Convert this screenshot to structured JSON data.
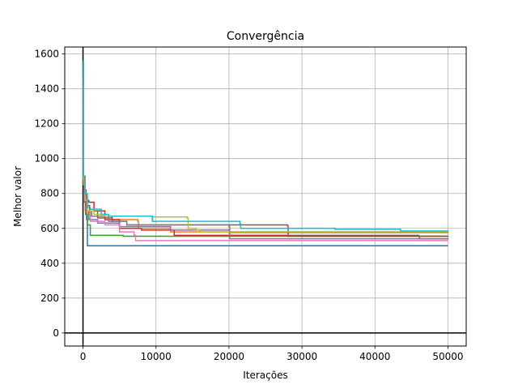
{
  "chart_data": {
    "type": "line",
    "title": "Convergência",
    "xlabel": "Iterações",
    "ylabel": "Melhor valor",
    "xlim": [
      -2500,
      52500
    ],
    "ylim": [
      -75,
      1640
    ],
    "xticks": [
      0,
      10000,
      20000,
      30000,
      40000,
      50000
    ],
    "yticks": [
      0,
      200,
      400,
      600,
      800,
      1000,
      1200,
      1400,
      1600
    ],
    "grid": true,
    "reference_lines": {
      "x": 0,
      "y": 0,
      "color": "#000000"
    },
    "series": [
      {
        "color": "#1f77b4",
        "points": [
          [
            0,
            1400
          ],
          [
            60,
            900
          ],
          [
            150,
            780
          ],
          [
            300,
            700
          ],
          [
            500,
            650
          ],
          [
            600,
            500
          ],
          [
            50000,
            500
          ]
        ]
      },
      {
        "color": "#ff7f0e",
        "points": [
          [
            0,
            1350
          ],
          [
            50,
            880
          ],
          [
            150,
            760
          ],
          [
            300,
            700
          ],
          [
            500,
            690
          ],
          [
            1000,
            670
          ],
          [
            4000,
            650
          ],
          [
            7500,
            640
          ],
          [
            7600,
            600
          ],
          [
            12000,
            580
          ],
          [
            20000,
            575
          ],
          [
            50000,
            570
          ]
        ]
      },
      {
        "color": "#2ca02c",
        "points": [
          [
            0,
            1300
          ],
          [
            80,
            850
          ],
          [
            200,
            760
          ],
          [
            350,
            680
          ],
          [
            600,
            620
          ],
          [
            1000,
            560
          ],
          [
            5500,
            555
          ],
          [
            50000,
            550
          ]
        ]
      },
      {
        "color": "#d62728",
        "points": [
          [
            0,
            1500
          ],
          [
            60,
            900
          ],
          [
            200,
            800
          ],
          [
            400,
            760
          ],
          [
            800,
            750
          ],
          [
            1500,
            700
          ],
          [
            3000,
            650
          ],
          [
            5000,
            600
          ],
          [
            8000,
            590
          ],
          [
            12500,
            560
          ],
          [
            28000,
            555
          ],
          [
            50000,
            555
          ]
        ]
      },
      {
        "color": "#9467bd",
        "points": [
          [
            0,
            1450
          ],
          [
            70,
            860
          ],
          [
            200,
            750
          ],
          [
            400,
            700
          ],
          [
            800,
            650
          ],
          [
            2000,
            630
          ],
          [
            5000,
            610
          ],
          [
            12000,
            590
          ],
          [
            20000,
            580
          ],
          [
            50000,
            580
          ]
        ]
      },
      {
        "color": "#8c564b",
        "points": [
          [
            0,
            1550
          ],
          [
            50,
            890
          ],
          [
            150,
            820
          ],
          [
            400,
            730
          ],
          [
            900,
            700
          ],
          [
            2000,
            660
          ],
          [
            4000,
            640
          ],
          [
            6000,
            620
          ],
          [
            28000,
            615
          ],
          [
            28100,
            560
          ],
          [
            46000,
            555
          ],
          [
            46100,
            540
          ],
          [
            50000,
            540
          ]
        ]
      },
      {
        "color": "#e377c2",
        "points": [
          [
            0,
            1480
          ],
          [
            70,
            870
          ],
          [
            200,
            770
          ],
          [
            500,
            700
          ],
          [
            1000,
            640
          ],
          [
            3000,
            620
          ],
          [
            5000,
            580
          ],
          [
            7000,
            560
          ],
          [
            7200,
            530
          ],
          [
            50000,
            530
          ]
        ]
      },
      {
        "color": "#7f7f7f",
        "points": [
          [
            0,
            1520
          ],
          [
            60,
            880
          ],
          [
            250,
            780
          ],
          [
            500,
            700
          ],
          [
            1200,
            670
          ],
          [
            3500,
            640
          ],
          [
            6000,
            620
          ],
          [
            20000,
            610
          ],
          [
            20100,
            540
          ],
          [
            50000,
            535
          ]
        ]
      },
      {
        "color": "#bcbd22",
        "points": [
          [
            0,
            1420
          ],
          [
            80,
            850
          ],
          [
            300,
            760
          ],
          [
            600,
            700
          ],
          [
            1500,
            680
          ],
          [
            3000,
            670
          ],
          [
            9500,
            665
          ],
          [
            14300,
            658
          ],
          [
            14400,
            600
          ],
          [
            15500,
            590
          ],
          [
            16000,
            580
          ],
          [
            50000,
            575
          ]
        ]
      },
      {
        "color": "#17becf",
        "points": [
          [
            0,
            1560
          ],
          [
            60,
            900
          ],
          [
            300,
            800
          ],
          [
            600,
            720
          ],
          [
            1000,
            710
          ],
          [
            2500,
            680
          ],
          [
            3500,
            670
          ],
          [
            9500,
            640
          ],
          [
            21500,
            625
          ],
          [
            21600,
            600
          ],
          [
            34500,
            595
          ],
          [
            43500,
            585
          ],
          [
            50000,
            580
          ]
        ]
      }
    ]
  }
}
